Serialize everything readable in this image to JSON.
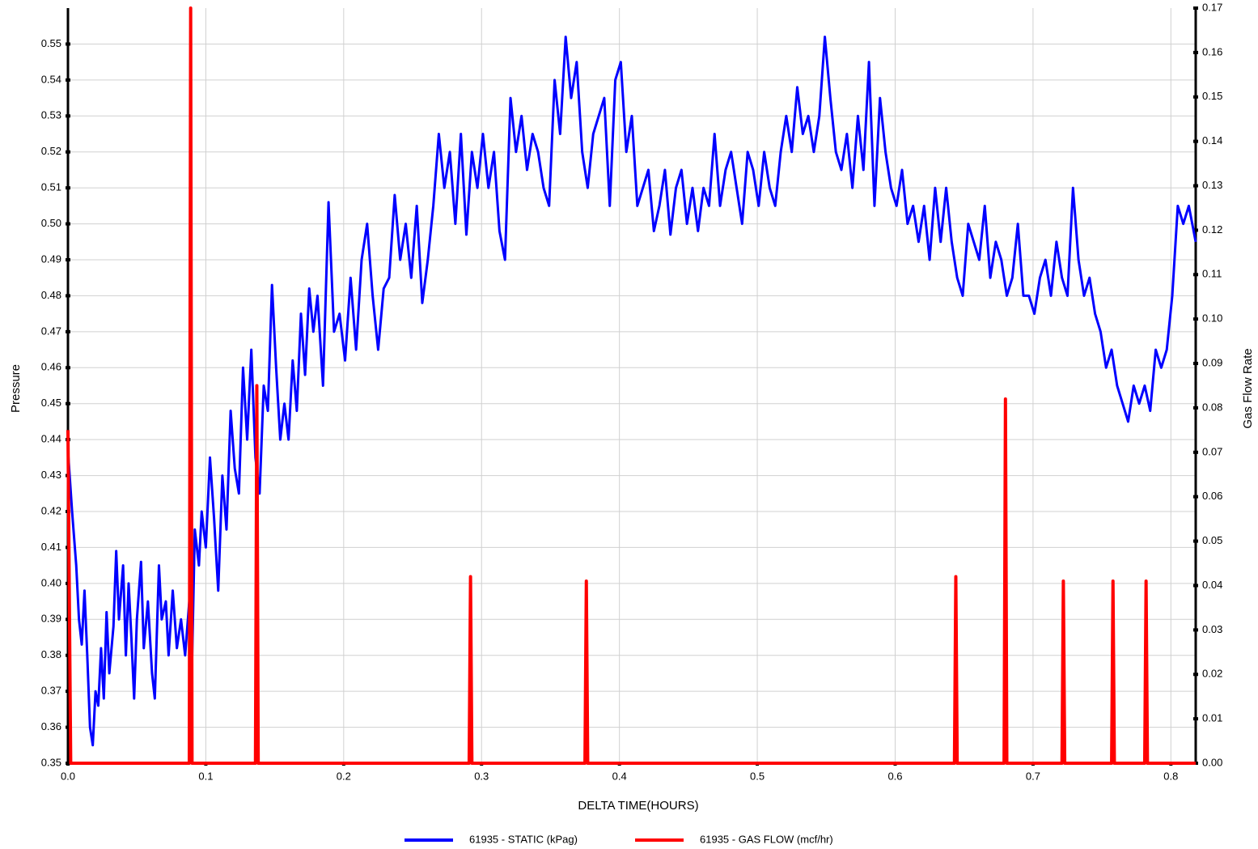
{
  "chart_data": {
    "type": "line",
    "xlabel": "DELTA TIME(HOURS)",
    "ylabel": "Pressure",
    "y2label": "Gas Flow Rate",
    "xlim": [
      0,
      0.818
    ],
    "ylim": [
      0.35,
      0.56
    ],
    "y2lim": [
      0,
      0.17
    ],
    "grid": true,
    "legend": "bottom",
    "xticks": [
      {
        "value": 0,
        "label": "0.0"
      },
      0.1,
      0.2,
      0.3,
      0.4,
      0.5,
      0.6,
      0.7,
      0.8
    ],
    "yticks": [
      0.35,
      0.36,
      0.37,
      0.38,
      0.39,
      {
        "value": 0.4,
        "label": "0.40"
      },
      0.41,
      0.42,
      0.43,
      0.44,
      0.45,
      0.46,
      0.47,
      0.48,
      0.49,
      {
        "value": 0.5,
        "label": "0.50"
      },
      0.51,
      0.52,
      0.53,
      0.54,
      0.55
    ],
    "y2ticks": [
      {
        "value": 0,
        "label": "0.00"
      },
      0.01,
      0.02,
      0.03,
      0.04,
      0.05,
      0.06,
      0.07,
      0.08,
      0.09,
      {
        "value": 0.1,
        "label": "0.10"
      },
      0.11,
      0.12,
      0.13,
      0.14,
      0.15,
      0.16,
      0.17
    ],
    "series": [
      {
        "name": "61935 - STATIC (kPag)",
        "color": "#0000ff",
        "axis": "y",
        "x": [
          0,
          0.003,
          0.006,
          0.008,
          0.01,
          0.012,
          0.014,
          0.016,
          0.018,
          0.02,
          0.022,
          0.024,
          0.026,
          0.028,
          0.03,
          0.033,
          0.035,
          0.037,
          0.04,
          0.042,
          0.044,
          0.046,
          0.048,
          0.05,
          0.053,
          0.055,
          0.058,
          0.061,
          0.063,
          0.066,
          0.068,
          0.071,
          0.073,
          0.076,
          0.079,
          0.082,
          0.085,
          0.088,
          0.09,
          0.092,
          0.095,
          0.097,
          0.1,
          0.103,
          0.106,
          0.109,
          0.112,
          0.115,
          0.118,
          0.121,
          0.124,
          0.127,
          0.13,
          0.133,
          0.136,
          0.139,
          0.142,
          0.145,
          0.148,
          0.151,
          0.154,
          0.157,
          0.16,
          0.163,
          0.166,
          0.169,
          0.172,
          0.175,
          0.178,
          0.181,
          0.185,
          0.189,
          0.193,
          0.197,
          0.201,
          0.205,
          0.209,
          0.213,
          0.217,
          0.221,
          0.225,
          0.229,
          0.233,
          0.237,
          0.241,
          0.245,
          0.249,
          0.253,
          0.257,
          0.261,
          0.265,
          0.269,
          0.273,
          0.277,
          0.281,
          0.285,
          0.289,
          0.293,
          0.297,
          0.301,
          0.305,
          0.309,
          0.313,
          0.317,
          0.321,
          0.325,
          0.329,
          0.333,
          0.337,
          0.341,
          0.345,
          0.349,
          0.353,
          0.357,
          0.361,
          0.365,
          0.369,
          0.373,
          0.377,
          0.381,
          0.385,
          0.389,
          0.393,
          0.397,
          0.401,
          0.405,
          0.409,
          0.413,
          0.417,
          0.421,
          0.425,
          0.429,
          0.433,
          0.437,
          0.441,
          0.445,
          0.449,
          0.453,
          0.457,
          0.461,
          0.465,
          0.469,
          0.473,
          0.477,
          0.481,
          0.485,
          0.489,
          0.493,
          0.497,
          0.501,
          0.505,
          0.509,
          0.513,
          0.517,
          0.521,
          0.525,
          0.529,
          0.533,
          0.537,
          0.541,
          0.545,
          0.549,
          0.553,
          0.557,
          0.561,
          0.565,
          0.569,
          0.573,
          0.577,
          0.581,
          0.585,
          0.589,
          0.593,
          0.597,
          0.601,
          0.605,
          0.609,
          0.613,
          0.617,
          0.621,
          0.625,
          0.629,
          0.633,
          0.637,
          0.641,
          0.645,
          0.649,
          0.653,
          0.657,
          0.661,
          0.665,
          0.669,
          0.673,
          0.677,
          0.681,
          0.685,
          0.689,
          0.693,
          0.697,
          0.701,
          0.705,
          0.709,
          0.713,
          0.717,
          0.721,
          0.725,
          0.729,
          0.733,
          0.737,
          0.741,
          0.745,
          0.749,
          0.753,
          0.757,
          0.761,
          0.765,
          0.769,
          0.773,
          0.777,
          0.781,
          0.785,
          0.789,
          0.793,
          0.797,
          0.801,
          0.805,
          0.809,
          0.813,
          0.818
        ],
        "values": [
          0.437,
          0.42,
          0.405,
          0.39,
          0.383,
          0.398,
          0.38,
          0.36,
          0.355,
          0.37,
          0.366,
          0.382,
          0.368,
          0.392,
          0.375,
          0.388,
          0.409,
          0.39,
          0.405,
          0.38,
          0.4,
          0.385,
          0.368,
          0.39,
          0.406,
          0.382,
          0.395,
          0.375,
          0.368,
          0.405,
          0.39,
          0.395,
          0.38,
          0.398,
          0.382,
          0.39,
          0.38,
          0.395,
          0.378,
          0.415,
          0.405,
          0.42,
          0.41,
          0.435,
          0.418,
          0.398,
          0.43,
          0.415,
          0.448,
          0.432,
          0.425,
          0.46,
          0.44,
          0.465,
          0.435,
          0.425,
          0.455,
          0.448,
          0.483,
          0.46,
          0.44,
          0.45,
          0.44,
          0.462,
          0.448,
          0.475,
          0.458,
          0.482,
          0.47,
          0.48,
          0.455,
          0.506,
          0.47,
          0.475,
          0.462,
          0.485,
          0.465,
          0.49,
          0.5,
          0.48,
          0.465,
          0.482,
          0.485,
          0.508,
          0.49,
          0.5,
          0.485,
          0.505,
          0.478,
          0.49,
          0.505,
          0.525,
          0.51,
          0.52,
          0.5,
          0.525,
          0.497,
          0.52,
          0.51,
          0.525,
          0.51,
          0.52,
          0.498,
          0.49,
          0.535,
          0.52,
          0.53,
          0.515,
          0.525,
          0.52,
          0.51,
          0.505,
          0.54,
          0.525,
          0.552,
          0.535,
          0.545,
          0.52,
          0.51,
          0.525,
          0.53,
          0.535,
          0.505,
          0.54,
          0.545,
          0.52,
          0.53,
          0.505,
          0.51,
          0.515,
          0.498,
          0.505,
          0.515,
          0.497,
          0.51,
          0.515,
          0.5,
          0.51,
          0.498,
          0.51,
          0.505,
          0.525,
          0.505,
          0.515,
          0.52,
          0.51,
          0.5,
          0.52,
          0.515,
          0.505,
          0.52,
          0.51,
          0.505,
          0.52,
          0.53,
          0.52,
          0.538,
          0.525,
          0.53,
          0.52,
          0.53,
          0.552,
          0.535,
          0.52,
          0.515,
          0.525,
          0.51,
          0.53,
          0.515,
          0.545,
          0.505,
          0.535,
          0.52,
          0.51,
          0.505,
          0.515,
          0.5,
          0.505,
          0.495,
          0.505,
          0.49,
          0.51,
          0.495,
          0.51,
          0.495,
          0.485,
          0.48,
          0.5,
          0.495,
          0.49,
          0.505,
          0.485,
          0.495,
          0.49,
          0.48,
          0.485,
          0.5,
          0.48,
          0.48,
          0.475,
          0.485,
          0.49,
          0.48,
          0.495,
          0.485,
          0.48,
          0.51,
          0.49,
          0.48,
          0.485,
          0.475,
          0.47,
          0.46,
          0.465,
          0.455,
          0.45,
          0.445,
          0.455,
          0.45,
          0.455,
          0.448,
          0.465,
          0.46,
          0.465,
          0.48,
          0.505,
          0.5,
          0.505,
          0.495
        ]
      },
      {
        "name": "61935 - GAS FLOW (mcf/hr)",
        "color": "#ff0000",
        "axis": "y2",
        "x": [
          0,
          0.002,
          0.088,
          0.089,
          0.09,
          0.136,
          0.137,
          0.138,
          0.291,
          0.292,
          0.293,
          0.375,
          0.376,
          0.377,
          0.643,
          0.644,
          0.645,
          0.679,
          0.68,
          0.681,
          0.721,
          0.722,
          0.723,
          0.757,
          0.758,
          0.759,
          0.781,
          0.782,
          0.783,
          0.818
        ],
        "values": [
          0.075,
          0,
          0,
          0.17,
          0,
          0,
          0.085,
          0,
          0,
          0.042,
          0,
          0,
          0.041,
          0,
          0,
          0.042,
          0,
          0,
          0.082,
          0,
          0,
          0.041,
          0,
          0,
          0.041,
          0,
          0,
          0.041,
          0,
          0
        ]
      }
    ]
  }
}
